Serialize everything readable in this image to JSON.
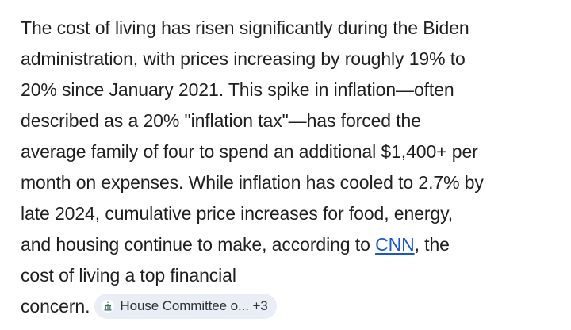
{
  "answer": {
    "lines": [
      "The cost of living has risen significantly during the Biden",
      "administration, with prices increasing by roughly 19% to",
      "20% since January 2021. This spike in inflation—often",
      "described as a 20% \"inflation tax\"—has forced the",
      "average family of four to spend an additional $1,400+ per",
      "month on expenses. While inflation has cooled to 2.7% by",
      "late 2024, cumulative price increases for food, energy,"
    ],
    "line8_before": "and housing continue to make, according to ",
    "line8_link": "CNN",
    "line8_after": ", the",
    "line9": "cost of living a top financial",
    "line10": "concern."
  },
  "source_chip": {
    "icon": "capitol-building-icon",
    "label": "House Committee o... +3"
  },
  "colors": {
    "text": "#1f1f1f",
    "link": "#1a56c8",
    "chip_bg": "#e9eef6"
  }
}
